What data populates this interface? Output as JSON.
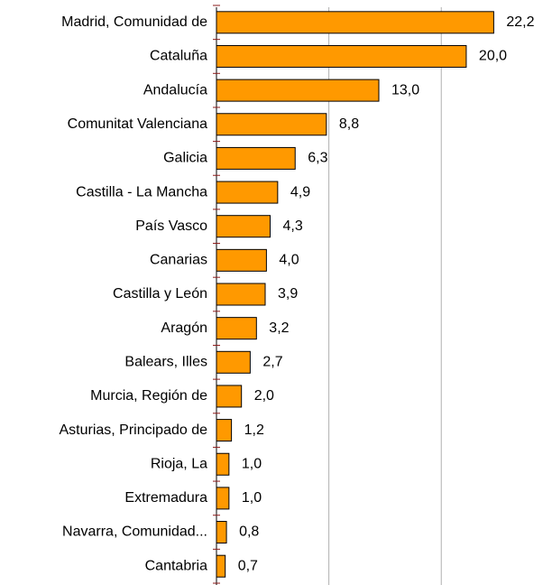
{
  "chart_data": {
    "type": "bar",
    "orientation": "horizontal",
    "categories": [
      "Madrid, Comunidad de",
      "Cataluña",
      "Andalucía",
      "Comunitat Valenciana",
      "Galicia",
      "Castilla - La Mancha",
      "País Vasco",
      "Canarias",
      "Castilla y León",
      "Aragón",
      "Balears, Illes",
      "Murcia, Región de",
      "Asturias, Principado de",
      "Rioja, La",
      "Extremadura",
      "Navarra, Comunidad...",
      "Cantabria"
    ],
    "values": [
      22.2,
      20.0,
      13.0,
      8.8,
      6.3,
      4.9,
      4.3,
      4.0,
      3.9,
      3.2,
      2.7,
      2.0,
      1.2,
      1.0,
      1.0,
      0.8,
      0.7
    ],
    "value_labels": [
      "22,2",
      "20,0",
      "13,0",
      "8,8",
      "6,3",
      "4,9",
      "4,3",
      "4,0",
      "3,9",
      "3,2",
      "2,7",
      "2,0",
      "1,2",
      "1,0",
      "1,0",
      "0,8",
      "0,7"
    ],
    "color": "#ff9900",
    "xlim": [
      0,
      26
    ],
    "xticks": [
      0,
      9,
      18
    ],
    "grid": true
  }
}
